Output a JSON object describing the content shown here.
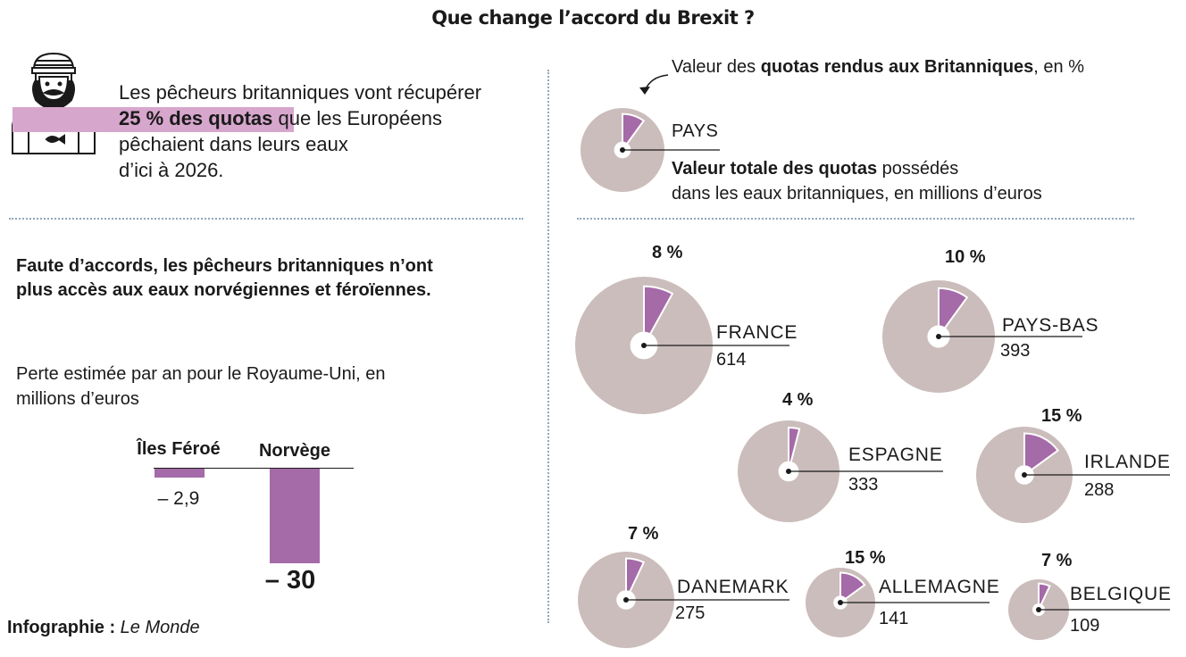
{
  "title": "Que change l’accord du Brexit ?",
  "intro": {
    "line1": "Les pêcheurs britanniques vont récupérer",
    "highlight": "25 % des quotas",
    "line2_rest": " que les Européens",
    "line3": "pêchaient dans leurs eaux",
    "line4": "d’ici à 2026."
  },
  "norway_section": {
    "heading": "Faute d’accords, les pêcheurs britanniques n’ont plus accès aux eaux norvégiennes et féroïennes.",
    "subtitle": "Perte estimée par an pour le Royaume-Uni, en millions d’euros"
  },
  "credit": {
    "label": "Infographie :",
    "source": "Le Monde"
  },
  "legend": {
    "top_pre": "Valeur des ",
    "top_bold": "quotas rendus aux Britanniques",
    "top_post": ", en %",
    "pays": "PAYS",
    "total_bold": "Valeur totale des quotas",
    "total_post": " possédés",
    "total_line2": "dans les eaux britanniques, en millions d’euros"
  },
  "colors": {
    "purple": "#a56aa8",
    "grey_pie": "#cbbdbb",
    "highlight": "#d7a6cc",
    "dots": "#8fa7b8"
  },
  "chart_data": [
    {
      "type": "bar",
      "categories": [
        "Îles Féroé",
        "Norvège"
      ],
      "values": [
        -2.9,
        -30
      ],
      "value_labels": [
        "– 2,9",
        "– 30"
      ],
      "ylim": [
        -30,
        0
      ]
    },
    {
      "type": "pie",
      "categories": [
        "FRANCE",
        "PAYS-BAS",
        "ESPAGNE",
        "IRLANDE",
        "DANEMARK",
        "ALLEMAGNE",
        "BELGIQUE"
      ],
      "totals": [
        614,
        393,
        333,
        288,
        275,
        141,
        109
      ],
      "percent_returned": [
        8,
        10,
        4,
        15,
        7,
        15,
        7
      ],
      "percent_labels": [
        "8 %",
        "10 %",
        "4 %",
        "15 %",
        "7 %",
        "15 %",
        "7 %"
      ]
    }
  ]
}
